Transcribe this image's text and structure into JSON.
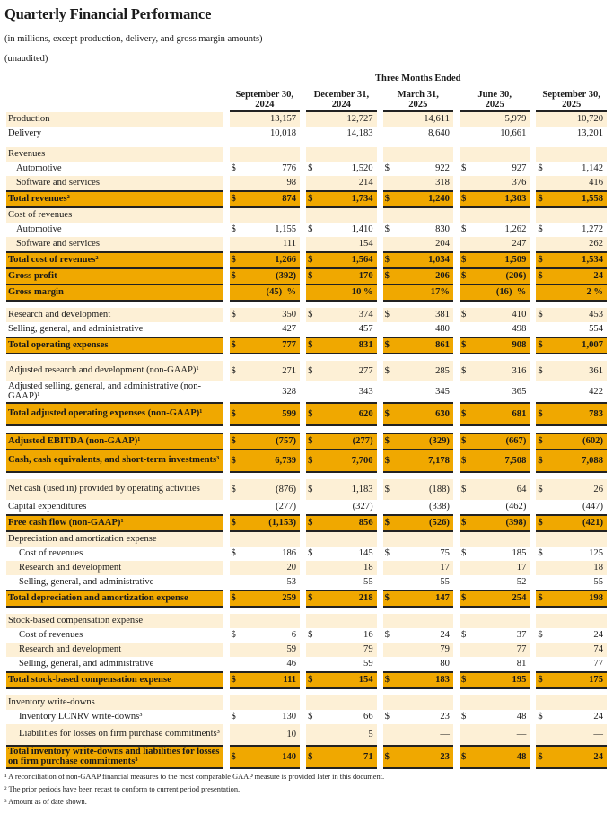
{
  "title": "Quarterly Financial Performance",
  "subtitle": "(in millions, except production, delivery, and gross margin amounts)",
  "unaudited": "(unaudited)",
  "group_header": "Three Months Ended",
  "columns": [
    {
      "line1": "September 30,",
      "line2": "2024"
    },
    {
      "line1": "December 31,",
      "line2": "2024"
    },
    {
      "line1": "March 31,",
      "line2": "2025"
    },
    {
      "line1": "June 30,",
      "line2": "2025"
    },
    {
      "line1": "September 30,",
      "line2": "2025"
    }
  ],
  "colors": {
    "light": "#fdf0d6",
    "gold": "#f0a800"
  },
  "rows": [
    {
      "type": "light",
      "label": "Production",
      "values": [
        "13,157",
        "12,727",
        "14,611",
        "5,979",
        "10,720"
      ]
    },
    {
      "type": "plain",
      "label": "Delivery",
      "values": [
        "10,018",
        "14,183",
        "8,640",
        "10,661",
        "13,201"
      ]
    },
    {
      "type": "spacer"
    },
    {
      "type": "light",
      "label": "Revenues",
      "values": [
        "",
        "",
        "",
        "",
        ""
      ]
    },
    {
      "type": "plain",
      "label": "Automotive",
      "indent": 1,
      "dollar": true,
      "values": [
        "776",
        "1,520",
        "922",
        "927",
        "1,142"
      ]
    },
    {
      "type": "light",
      "label": "Software and services",
      "indent": 1,
      "values": [
        "98",
        "214",
        "318",
        "376",
        "416"
      ]
    },
    {
      "type": "total",
      "top": true,
      "label": "Total revenues²",
      "dollar": true,
      "values": [
        "874",
        "1,734",
        "1,240",
        "1,303",
        "1,558"
      ]
    },
    {
      "type": "light",
      "label": "Cost of revenues",
      "values": [
        "",
        "",
        "",
        "",
        ""
      ]
    },
    {
      "type": "plain",
      "label": "Automotive",
      "indent": 1,
      "dollar": true,
      "values": [
        "1,155",
        "1,410",
        "830",
        "1,262",
        "1,272"
      ]
    },
    {
      "type": "light",
      "label": "Software and services",
      "indent": 1,
      "values": [
        "111",
        "154",
        "204",
        "247",
        "262"
      ]
    },
    {
      "type": "total",
      "top": true,
      "label": "Total cost of revenues²",
      "dollar": true,
      "values": [
        "1,266",
        "1,564",
        "1,034",
        "1,509",
        "1,534"
      ]
    },
    {
      "type": "total",
      "label": "Gross profit",
      "dollar": true,
      "values": [
        "(392)",
        "170",
        "206",
        "(206)",
        "24"
      ]
    },
    {
      "type": "total",
      "label": "Gross margin",
      "values": [
        "(45)  %",
        "10 %",
        "17%",
        "(16)  %",
        "2 %"
      ]
    },
    {
      "type": "spacer"
    },
    {
      "type": "light",
      "label": "Research and development",
      "dollar": true,
      "values": [
        "350",
        "374",
        "381",
        "410",
        "453"
      ]
    },
    {
      "type": "plain",
      "label": "Selling, general, and administrative",
      "values": [
        "427",
        "457",
        "480",
        "498",
        "554"
      ]
    },
    {
      "type": "total",
      "top": true,
      "label": "Total operating expenses",
      "dollar": true,
      "values": [
        "777",
        "831",
        "861",
        "908",
        "1,007"
      ]
    },
    {
      "type": "spacer"
    },
    {
      "type": "light",
      "tall": true,
      "label": "Adjusted research and development (non-GAAP)¹",
      "dollar": true,
      "values": [
        "271",
        "277",
        "285",
        "316",
        "361"
      ]
    },
    {
      "type": "plain",
      "tall": true,
      "label": "Adjusted selling, general, and administrative (non-GAAP)¹",
      "values": [
        "328",
        "343",
        "345",
        "365",
        "422"
      ]
    },
    {
      "type": "total",
      "top": true,
      "tall": true,
      "label": "Total adjusted operating expenses (non-GAAP)¹",
      "dollar": true,
      "values": [
        "599",
        "620",
        "630",
        "681",
        "783"
      ]
    },
    {
      "type": "spacer"
    },
    {
      "type": "total",
      "top": true,
      "label": "Adjusted EBITDA (non-GAAP)¹",
      "dollar": true,
      "values": [
        "(757)",
        "(277)",
        "(329)",
        "(667)",
        "(602)"
      ]
    },
    {
      "type": "total",
      "tall": true,
      "label": "Cash, cash equivalents, and short-term investments³",
      "dollar": true,
      "values": [
        "6,739",
        "7,700",
        "7,178",
        "7,508",
        "7,088"
      ]
    },
    {
      "type": "spacer"
    },
    {
      "type": "light",
      "tall": true,
      "label": "Net cash (used in) provided by operating activities",
      "dollar": true,
      "values": [
        "(876)",
        "1,183",
        "(188)",
        "64",
        "26"
      ]
    },
    {
      "type": "plain",
      "label": "Capital expenditures",
      "values": [
        "(277)",
        "(327)",
        "(338)",
        "(462)",
        "(447)"
      ]
    },
    {
      "type": "total",
      "top": true,
      "label": "Free cash flow (non-GAAP)¹",
      "dollar": true,
      "values": [
        "(1,153)",
        "856",
        "(526)",
        "(398)",
        "(421)"
      ]
    },
    {
      "type": "light",
      "label": "Depreciation and amortization expense",
      "values": [
        "",
        "",
        "",
        "",
        ""
      ]
    },
    {
      "type": "plain",
      "label": "Cost of revenues",
      "indent": 2,
      "dollar": true,
      "values": [
        "186",
        "145",
        "75",
        "185",
        "125"
      ]
    },
    {
      "type": "light",
      "label": "Research and development",
      "indent": 2,
      "values": [
        "20",
        "18",
        "17",
        "17",
        "18"
      ]
    },
    {
      "type": "plain",
      "label": "Selling, general, and administrative",
      "indent": 2,
      "values": [
        "53",
        "55",
        "55",
        "52",
        "55"
      ]
    },
    {
      "type": "total",
      "top": true,
      "label": "Total depreciation and amortization expense",
      "dollar": true,
      "values": [
        "259",
        "218",
        "147",
        "254",
        "198"
      ]
    },
    {
      "type": "spacer"
    },
    {
      "type": "light",
      "label": "Stock-based compensation expense",
      "values": [
        "",
        "",
        "",
        "",
        ""
      ]
    },
    {
      "type": "plain",
      "label": "Cost of revenues",
      "indent": 2,
      "dollar": true,
      "values": [
        "6",
        "16",
        "24",
        "37",
        "24"
      ]
    },
    {
      "type": "light",
      "label": "Research and development",
      "indent": 2,
      "values": [
        "59",
        "79",
        "79",
        "77",
        "74"
      ]
    },
    {
      "type": "plain",
      "label": "Selling, general, and administrative",
      "indent": 2,
      "values": [
        "46",
        "59",
        "80",
        "81",
        "77"
      ]
    },
    {
      "type": "total",
      "top": true,
      "label": "Total stock-based compensation expense",
      "dollar": true,
      "values": [
        "111",
        "154",
        "183",
        "195",
        "175"
      ]
    },
    {
      "type": "spacer"
    },
    {
      "type": "light",
      "label": "Inventory write-downs",
      "values": [
        "",
        "",
        "",
        "",
        ""
      ]
    },
    {
      "type": "plain",
      "label": "Inventory LCNRV write-downs³",
      "indent": 2,
      "dollar": true,
      "values": [
        "130",
        "66",
        "23",
        "48",
        "24"
      ]
    },
    {
      "type": "light",
      "tall": true,
      "label": "Liabilities for losses on firm purchase commitments³",
      "indent": 2,
      "values": [
        "10",
        "5",
        "—",
        "—",
        "—"
      ]
    },
    {
      "type": "total",
      "top": true,
      "tall": true,
      "label": "Total inventory write-downs and liabilities for losses on firm purchase commitments³",
      "dollar": true,
      "values": [
        "140",
        "71",
        "23",
        "48",
        "24"
      ]
    }
  ],
  "dollar_sign": "$",
  "footnotes": [
    "¹ A reconciliation of non-GAAP financial measures to the most comparable GAAP measure is provided later in this document.",
    "² The prior periods have been recast to conform to current period presentation.",
    "³ Amount as of date shown."
  ]
}
